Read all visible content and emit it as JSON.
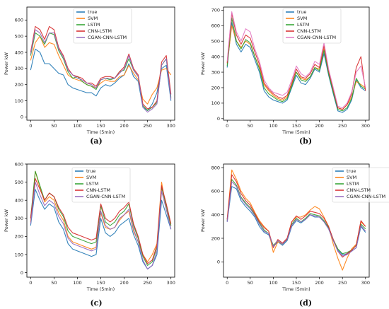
{
  "chart_data": [
    {
      "panel_label": "(a)",
      "type": "line",
      "xlabel": "Time (5min)",
      "ylabel": "Power kW",
      "xlim": [
        -8,
        308
      ],
      "ylim": [
        -20,
        680
      ],
      "xticks": [
        0,
        50,
        100,
        150,
        200,
        250,
        300
      ],
      "yticks": [
        0,
        100,
        200,
        300,
        400,
        500,
        600
      ],
      "legend_position": "top-center",
      "x": [
        0,
        10,
        20,
        30,
        40,
        50,
        60,
        70,
        80,
        90,
        100,
        110,
        120,
        130,
        140,
        150,
        160,
        170,
        180,
        190,
        200,
        210,
        220,
        230,
        240,
        250,
        260,
        270,
        280,
        290,
        300
      ],
      "series": [
        {
          "name": "true",
          "color": "#1f77b4",
          "values": [
            290,
            420,
            400,
            330,
            330,
            300,
            270,
            260,
            200,
            180,
            170,
            160,
            150,
            150,
            130,
            180,
            200,
            190,
            210,
            240,
            260,
            330,
            250,
            220,
            60,
            40,
            80,
            150,
            300,
            320,
            100
          ]
        },
        {
          "name": "SVM",
          "color": "#ff7f0e",
          "values": [
            350,
            460,
            500,
            430,
            460,
            450,
            380,
            320,
            260,
            240,
            230,
            220,
            200,
            190,
            180,
            210,
            230,
            220,
            220,
            250,
            260,
            320,
            270,
            230,
            110,
            80,
            140,
            180,
            290,
            300,
            260
          ]
        },
        {
          "name": "LSTM",
          "color": "#2ca02c",
          "values": [
            380,
            520,
            500,
            450,
            520,
            510,
            410,
            360,
            280,
            240,
            250,
            220,
            200,
            190,
            170,
            230,
            240,
            230,
            240,
            280,
            290,
            360,
            290,
            250,
            70,
            40,
            60,
            90,
            320,
            360,
            120
          ]
        },
        {
          "name": "CNN-LSTM",
          "color": "#d62728",
          "values": [
            400,
            560,
            540,
            480,
            560,
            540,
            430,
            380,
            300,
            260,
            250,
            240,
            210,
            210,
            190,
            240,
            250,
            250,
            240,
            280,
            310,
            390,
            300,
            260,
            80,
            50,
            60,
            100,
            340,
            380,
            140
          ]
        },
        {
          "name": "CGAN-CNN-LSTM",
          "color": "#9467bd",
          "values": [
            390,
            540,
            520,
            460,
            520,
            520,
            420,
            370,
            290,
            260,
            240,
            230,
            210,
            200,
            180,
            230,
            240,
            240,
            240,
            270,
            300,
            380,
            290,
            250,
            60,
            30,
            50,
            80,
            320,
            360,
            110
          ]
        }
      ]
    },
    {
      "panel_label": "(b)",
      "type": "line",
      "xlabel": "Time (5min)",
      "ylabel": "Power kW",
      "xlim": [
        -8,
        308
      ],
      "ylim": [
        -10,
        720
      ],
      "xticks": [
        0,
        50,
        100,
        150,
        200,
        250,
        300
      ],
      "yticks": [
        0,
        100,
        200,
        300,
        400,
        500,
        600,
        700
      ],
      "legend_position": "top-right",
      "x": [
        0,
        10,
        20,
        30,
        40,
        50,
        60,
        70,
        80,
        90,
        100,
        110,
        120,
        130,
        140,
        150,
        160,
        170,
        180,
        190,
        200,
        210,
        220,
        230,
        240,
        250,
        260,
        270,
        280,
        290,
        300
      ],
      "series": [
        {
          "name": "true",
          "color": "#1f77b4",
          "values": [
            330,
            620,
            480,
            430,
            480,
            460,
            380,
            300,
            180,
            140,
            120,
            110,
            100,
            120,
            200,
            280,
            230,
            220,
            260,
            320,
            300,
            420,
            280,
            160,
            50,
            40,
            60,
            120,
            250,
            200,
            180
          ]
        },
        {
          "name": "SVM",
          "color": "#ff7f0e",
          "values": [
            350,
            600,
            500,
            460,
            500,
            480,
            400,
            330,
            220,
            180,
            150,
            130,
            120,
            140,
            220,
            300,
            260,
            250,
            270,
            330,
            320,
            450,
            300,
            180,
            70,
            60,
            90,
            140,
            240,
            220,
            200
          ]
        },
        {
          "name": "LSTM",
          "color": "#2ca02c",
          "values": [
            340,
            650,
            500,
            450,
            510,
            490,
            400,
            320,
            200,
            160,
            140,
            120,
            110,
            130,
            210,
            300,
            250,
            240,
            270,
            330,
            310,
            440,
            290,
            170,
            60,
            50,
            70,
            130,
            260,
            210,
            190
          ]
        },
        {
          "name": "CNN-LSTM",
          "color": "#d62728",
          "values": [
            360,
            680,
            540,
            480,
            540,
            520,
            430,
            350,
            230,
            190,
            160,
            140,
            130,
            150,
            230,
            320,
            270,
            260,
            290,
            350,
            330,
            470,
            310,
            190,
            70,
            60,
            90,
            160,
            330,
            400,
            180
          ]
        },
        {
          "name": "CGAN-CNN-LSTM",
          "color": "#e377c2",
          "values": [
            370,
            690,
            560,
            500,
            580,
            560,
            450,
            370,
            250,
            200,
            170,
            160,
            150,
            170,
            250,
            340,
            290,
            270,
            300,
            370,
            350,
            490,
            320,
            200,
            80,
            70,
            100,
            170,
            300,
            340,
            200
          ]
        }
      ]
    },
    {
      "panel_label": "(c)",
      "type": "line",
      "xlabel": "Time (5min)",
      "ylabel": "Power kW",
      "xlim": [
        -8,
        308
      ],
      "ylim": [
        -25,
        600
      ],
      "xticks": [
        0,
        50,
        100,
        150,
        200,
        250,
        300
      ],
      "yticks": [
        0,
        100,
        200,
        300,
        400,
        500,
        600
      ],
      "legend_position": "top-center",
      "x": [
        0,
        10,
        20,
        30,
        40,
        50,
        60,
        70,
        80,
        90,
        100,
        110,
        120,
        130,
        140,
        150,
        160,
        170,
        180,
        190,
        200,
        210,
        220,
        230,
        240,
        250,
        260,
        270,
        280,
        290,
        300
      ],
      "series": [
        {
          "name": "true",
          "color": "#1f77b4",
          "values": [
            260,
            460,
            400,
            350,
            380,
            360,
            280,
            240,
            160,
            130,
            120,
            110,
            100,
            90,
            100,
            300,
            220,
            200,
            220,
            260,
            280,
            300,
            210,
            150,
            60,
            20,
            40,
            100,
            400,
            320,
            240
          ]
        },
        {
          "name": "SVM",
          "color": "#ff7f0e",
          "values": [
            280,
            560,
            470,
            390,
            420,
            400,
            330,
            290,
            200,
            170,
            160,
            150,
            140,
            130,
            140,
            330,
            250,
            240,
            250,
            290,
            320,
            340,
            230,
            170,
            100,
            60,
            100,
            160,
            500,
            350,
            260
          ]
        },
        {
          "name": "LSTM",
          "color": "#2ca02c",
          "values": [
            300,
            560,
            480,
            400,
            440,
            420,
            350,
            310,
            230,
            200,
            190,
            180,
            170,
            160,
            170,
            370,
            280,
            260,
            280,
            320,
            340,
            380,
            260,
            190,
            90,
            40,
            60,
            140,
            470,
            370,
            260
          ]
        },
        {
          "name": "CNN-LSTM",
          "color": "#d62728",
          "values": [
            300,
            520,
            460,
            400,
            440,
            420,
            360,
            320,
            250,
            220,
            210,
            200,
            190,
            180,
            190,
            380,
            300,
            280,
            300,
            340,
            360,
            390,
            270,
            200,
            100,
            50,
            70,
            150,
            480,
            380,
            270
          ]
        },
        {
          "name": "CGAN-CNN-LSTM",
          "color": "#9467bd",
          "values": [
            270,
            500,
            430,
            370,
            400,
            380,
            310,
            270,
            190,
            160,
            150,
            140,
            130,
            120,
            130,
            340,
            260,
            240,
            250,
            300,
            320,
            350,
            240,
            170,
            70,
            20,
            40,
            120,
            450,
            350,
            240
          ]
        }
      ]
    },
    {
      "panel_label": "(d)",
      "type": "line",
      "xlabel": "Time (5min)",
      "ylabel": "Power kW",
      "xlim": [
        -8,
        308
      ],
      "ylim": [
        -130,
        830
      ],
      "xticks": [
        0,
        50,
        100,
        150,
        200,
        250,
        300
      ],
      "yticks": [
        0,
        200,
        400,
        600,
        800
      ],
      "legend_position": "top-right",
      "x": [
        0,
        10,
        20,
        30,
        40,
        50,
        60,
        70,
        80,
        90,
        100,
        110,
        120,
        130,
        140,
        150,
        160,
        170,
        180,
        190,
        200,
        210,
        220,
        230,
        240,
        250,
        260,
        270,
        280,
        290,
        300
      ],
      "series": [
        {
          "name": "true",
          "color": "#1f77b4",
          "values": [
            340,
            640,
            620,
            520,
            470,
            430,
            380,
            300,
            250,
            230,
            130,
            170,
            140,
            180,
            300,
            350,
            330,
            360,
            400,
            380,
            380,
            340,
            280,
            180,
            100,
            60,
            70,
            90,
            120,
            300,
            250
          ]
        },
        {
          "name": "SVM",
          "color": "#ff7f0e",
          "values": [
            360,
            780,
            700,
            600,
            540,
            500,
            420,
            350,
            300,
            260,
            80,
            170,
            150,
            200,
            340,
            380,
            380,
            400,
            440,
            470,
            450,
            380,
            300,
            150,
            30,
            -70,
            30,
            110,
            150,
            340,
            300
          ]
        },
        {
          "name": "LSTM",
          "color": "#2ca02c",
          "values": [
            350,
            700,
            650,
            550,
            500,
            460,
            400,
            330,
            270,
            240,
            140,
            180,
            150,
            190,
            320,
            370,
            340,
            370,
            410,
            400,
            390,
            350,
            290,
            190,
            110,
            70,
            80,
            100,
            140,
            320,
            280
          ]
        },
        {
          "name": "CNN-LSTM",
          "color": "#d62728",
          "values": [
            360,
            740,
            680,
            580,
            520,
            480,
            410,
            340,
            290,
            260,
            120,
            190,
            160,
            200,
            340,
            390,
            360,
            390,
            430,
            420,
            410,
            370,
            300,
            190,
            90,
            40,
            70,
            100,
            140,
            350,
            300
          ]
        },
        {
          "name": "CGAN-CNN-LSTM",
          "color": "#9467bd",
          "values": [
            340,
            680,
            640,
            540,
            490,
            450,
            390,
            320,
            260,
            240,
            130,
            180,
            150,
            190,
            310,
            360,
            340,
            360,
            400,
            390,
            380,
            340,
            280,
            180,
            90,
            50,
            60,
            90,
            120,
            310,
            260
          ]
        }
      ]
    }
  ]
}
